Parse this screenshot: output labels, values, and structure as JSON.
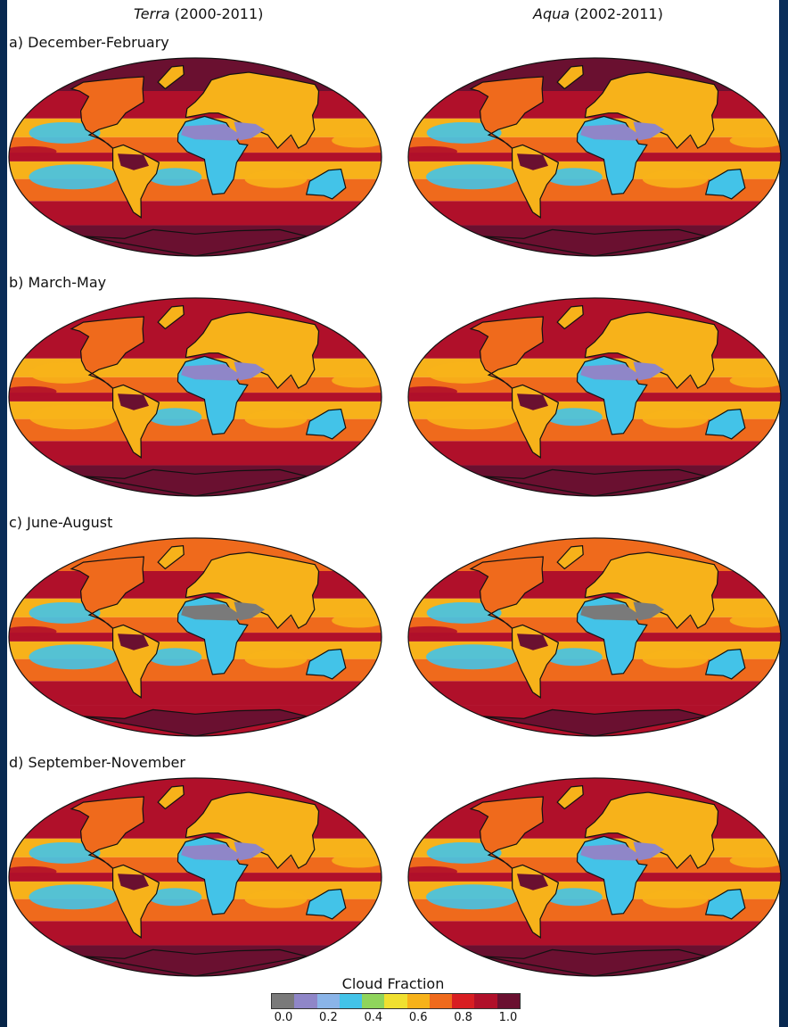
{
  "columns": [
    {
      "name": "Terra",
      "years": "(2000-2011)"
    },
    {
      "name": "Aqua",
      "years": "(2002-2011)"
    }
  ],
  "rows": [
    {
      "label": "a) December-February"
    },
    {
      "label": "b) March-May"
    },
    {
      "label": "c) June-August"
    },
    {
      "label": "d) September-November"
    }
  ],
  "legend": {
    "title": "Cloud Fraction",
    "ticks": [
      "0.0",
      "0.2",
      "0.4",
      "0.6",
      "0.8",
      "1.0"
    ],
    "colors": [
      "#7a7a7a",
      "#8f86c8",
      "#8ab4e8",
      "#43c3e8",
      "#8fd45c",
      "#f0e030",
      "#f7b21a",
      "#ef6a1c",
      "#d81e22",
      "#b0102a",
      "#6a1030"
    ]
  },
  "palette": {
    "ocean_high": "#b0102a",
    "ocean_mid": "#ef6a1c",
    "ocean_low": "#f7b21a",
    "tropics": "#43c3e8",
    "desert": "#8f86c8",
    "dry": "#7a7a7a",
    "polar": "#6a1030"
  }
}
